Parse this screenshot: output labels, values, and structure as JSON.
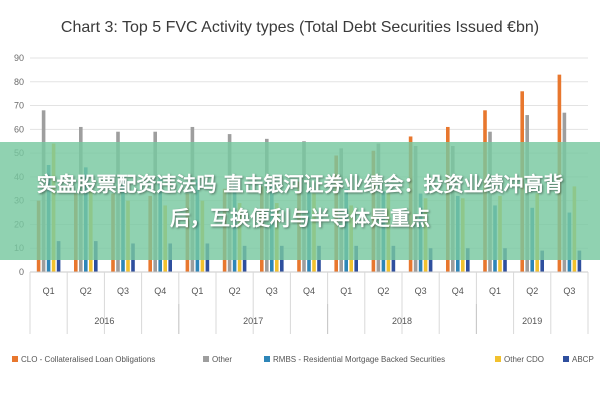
{
  "chart_data": {
    "type": "bar",
    "title": "Chart 3: Top 5 FVC Activity types (Total Debt Securities Issued €bn)",
    "ylim": [
      0,
      90
    ],
    "yticks": [
      0,
      10,
      20,
      30,
      40,
      50,
      60,
      70,
      80,
      90
    ],
    "grid": true,
    "legend_position": "bottom",
    "categories": [
      "Q1",
      "Q2",
      "Q3",
      "Q4",
      "Q1",
      "Q2",
      "Q3",
      "Q4",
      "Q1",
      "Q2",
      "Q3",
      "Q4",
      "Q1",
      "Q2",
      "Q3"
    ],
    "groups": [
      {
        "label": "2016",
        "count": 4
      },
      {
        "label": "2017",
        "count": 4
      },
      {
        "label": "2018",
        "count": 4
      },
      {
        "label": "2019",
        "count": 3
      }
    ],
    "series": [
      {
        "name": "CLO - Collateralised Loan Obligations",
        "color": "#e8772e",
        "values": [
          30,
          33,
          33,
          32,
          33,
          35,
          36,
          38,
          49,
          51,
          57,
          61,
          68,
          76,
          83
        ]
      },
      {
        "name": "Other",
        "color": "#9e9e9e",
        "values": [
          68,
          61,
          59,
          59,
          61,
          58,
          56,
          55,
          52,
          54,
          53,
          53,
          59,
          66,
          67
        ]
      },
      {
        "name": "RMBS - Residential Mortgage Backed Securities",
        "color": "#2e86b8",
        "values": [
          45,
          44,
          41,
          40,
          39,
          38,
          37,
          36,
          35,
          34,
          33,
          32,
          28,
          27,
          25
        ]
      },
      {
        "name": "Other CDO",
        "color": "#f2c12e",
        "values": [
          54,
          35,
          30,
          28,
          30,
          29,
          29,
          33,
          28,
          33,
          31,
          31,
          32,
          33,
          36
        ]
      },
      {
        "name": "ABCP",
        "color": "#2f4f9e",
        "values": [
          13,
          13,
          12,
          12,
          12,
          11,
          11,
          11,
          11,
          11,
          10,
          10,
          10,
          9,
          9
        ]
      }
    ]
  },
  "banner": {
    "text": "实盘股票配资违法吗 直击银河证券业绩会：投资业绩冲高背后，互换便利与半导体是重点"
  }
}
